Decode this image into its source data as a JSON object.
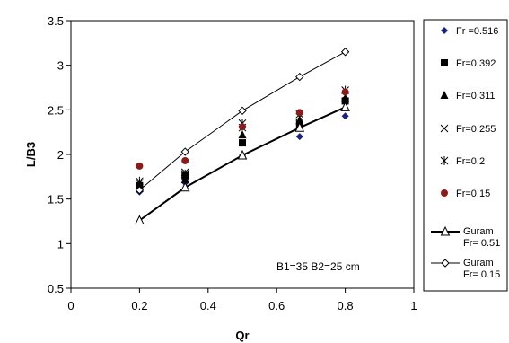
{
  "chart_data": {
    "type": "scatter",
    "xlabel": "Qr",
    "ylabel": "L/B3",
    "xlim": [
      0,
      1
    ],
    "ylim": [
      0.5,
      3.5
    ],
    "xticks": [
      "0",
      "0.2",
      "0.4",
      "0.6",
      "0.8",
      "1"
    ],
    "yticks": [
      "0.5",
      "1",
      "1.5",
      "2",
      "2.5",
      "3",
      "3.5"
    ],
    "grid": false,
    "legend_position": "right",
    "annotation": "B1=35  B2=25  cm",
    "series": [
      {
        "name": "Fr =0.516",
        "marker": "diamond-filled",
        "color": "#1a237e",
        "x": [
          0.2,
          0.333,
          0.5,
          0.667,
          0.8
        ],
        "y": [
          1.58,
          1.68,
          1.99,
          2.2,
          2.43
        ]
      },
      {
        "name": "Fr=0.392",
        "marker": "square-filled",
        "color": "#000000",
        "x": [
          0.2,
          0.333,
          0.5,
          0.667,
          0.8
        ],
        "y": [
          1.65,
          1.76,
          2.13,
          2.34,
          2.6
        ]
      },
      {
        "name": "Fr=0.311",
        "marker": "triangle-filled",
        "color": "#000000",
        "x": [
          0.2,
          0.333,
          0.5,
          0.667,
          0.8
        ],
        "y": [
          1.62,
          1.72,
          2.22,
          2.38,
          2.63
        ]
      },
      {
        "name": "Fr=0.255",
        "marker": "x",
        "color": "#000000",
        "x": [
          0.2,
          0.333,
          0.5,
          0.667,
          0.8
        ],
        "y": [
          1.68,
          1.8,
          2.3,
          2.42,
          2.66
        ]
      },
      {
        "name": "Fr=0.2",
        "marker": "asterisk",
        "color": "#000000",
        "x": [
          0.2,
          0.333,
          0.5,
          0.667,
          0.8
        ],
        "y": [
          1.7,
          1.78,
          2.35,
          2.45,
          2.72
        ]
      },
      {
        "name": "Fr=0.15",
        "marker": "circle-filled",
        "color": "#8b1a1a",
        "x": [
          0.2,
          0.333,
          0.5,
          0.667,
          0.8
        ],
        "y": [
          1.87,
          1.93,
          2.31,
          2.47,
          2.7
        ]
      },
      {
        "name": "Guram",
        "name2": "Fr= 0.51",
        "marker": "triangle-open",
        "line": true,
        "line_width": 2,
        "color": "#000000",
        "x": [
          0.2,
          0.333,
          0.5,
          0.667,
          0.8
        ],
        "y": [
          1.26,
          1.63,
          1.99,
          2.3,
          2.53
        ]
      },
      {
        "name": "Guram",
        "name2": "Fr= 0.15",
        "marker": "diamond-open",
        "line": true,
        "line_width": 1,
        "color": "#000000",
        "x": [
          0.2,
          0.333,
          0.5,
          0.667,
          0.8
        ],
        "y": [
          1.6,
          2.03,
          2.49,
          2.87,
          3.15
        ]
      }
    ]
  }
}
